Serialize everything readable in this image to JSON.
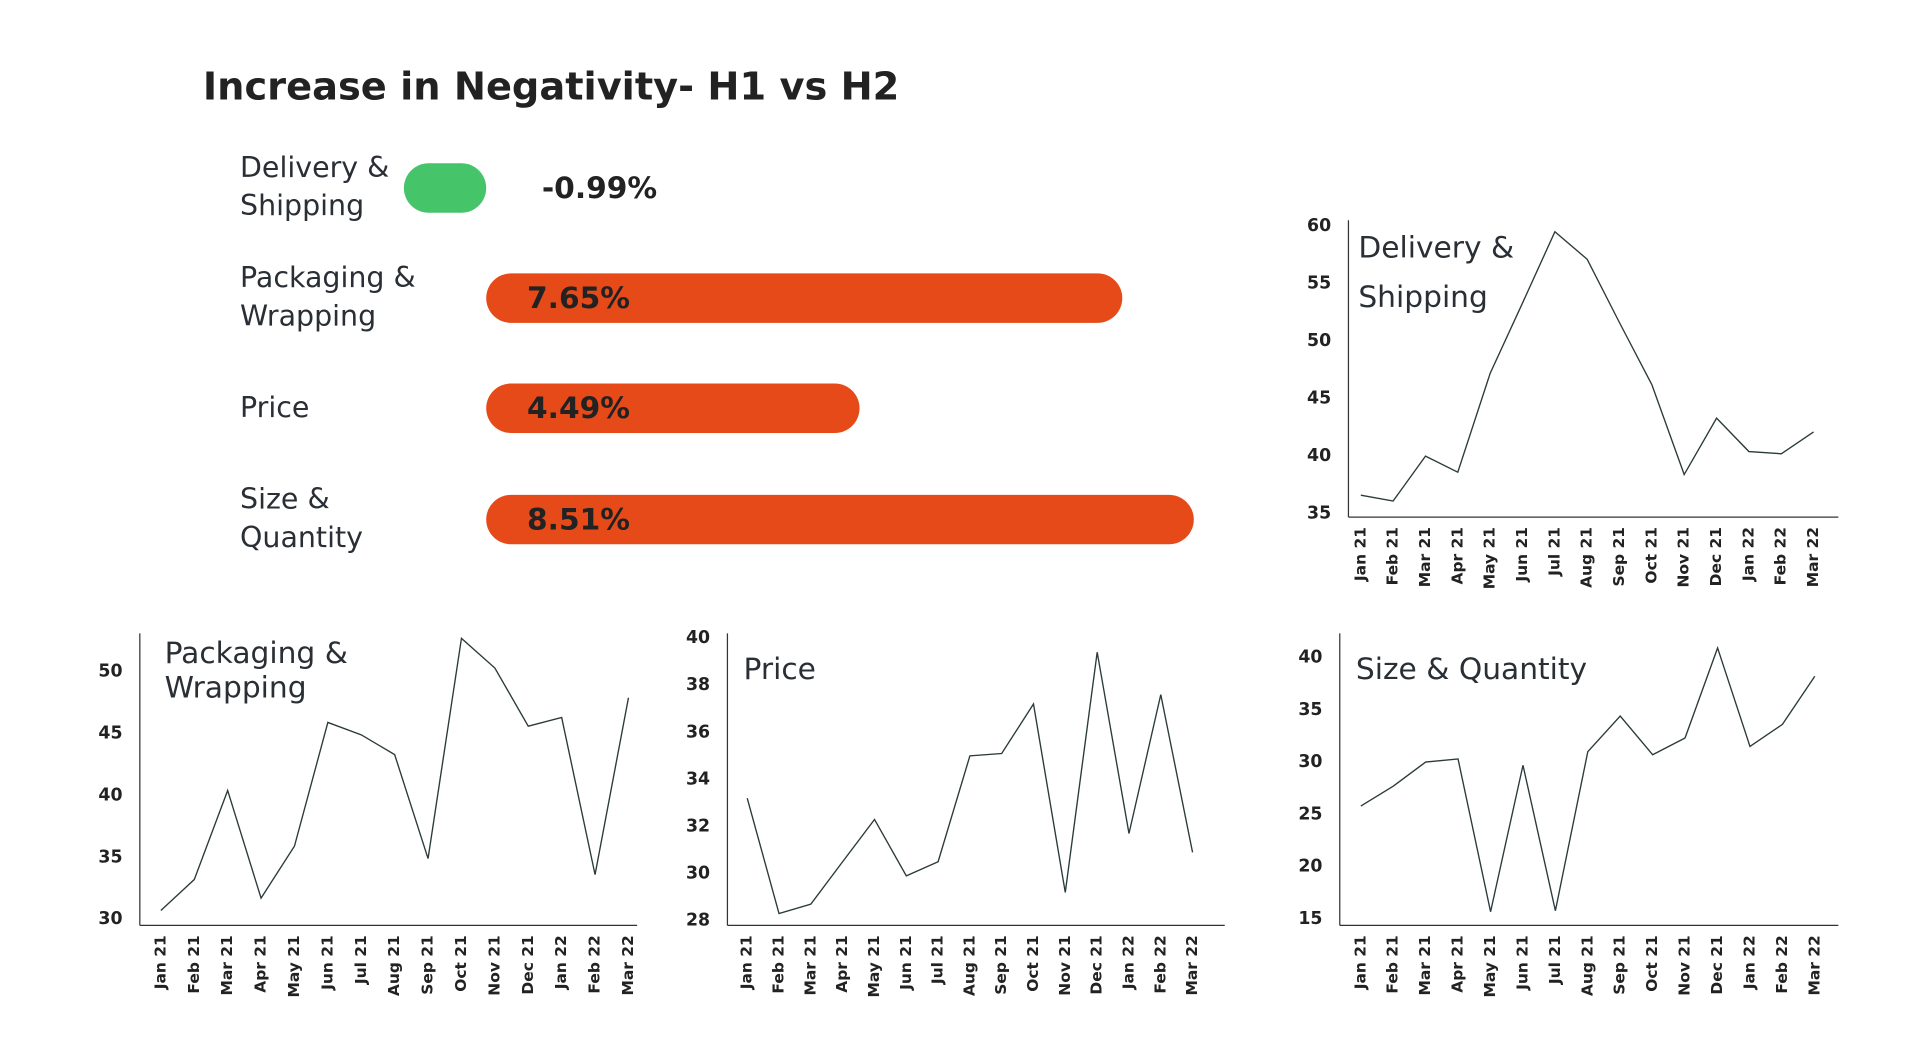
{
  "chart_data": [
    {
      "type": "hbar",
      "title": "Increase in Negativity- H1 vs H2",
      "categories": [
        "Delivery & Shipping",
        "Packaging & Wrapping",
        "Price",
        "Size & Quantity"
      ],
      "values": [
        -0.99,
        7.65,
        4.49,
        8.51
      ],
      "value_labels": [
        "-0.99%",
        "7.65%",
        "4.49%",
        "8.51%"
      ],
      "colors": [
        "#45c46a",
        "#e64a19",
        "#e64a19",
        "#e64a19"
      ]
    },
    {
      "type": "line",
      "title": "Delivery & Shipping",
      "categories": [
        "Jan 21",
        "Feb 21",
        "Mar 21",
        "Apr 21",
        "May 21",
        "Jun 21",
        "Jul 21",
        "Aug 21",
        "Sep 21",
        "Oct 21",
        "Nov 21",
        "Dec 21",
        "Jan 22",
        "Feb 22",
        "Mar 22"
      ],
      "values": [
        36.6,
        36.1,
        40.0,
        38.6,
        47.2,
        53.3,
        59.5,
        57.1,
        51.6,
        46.2,
        38.4,
        43.3,
        40.4,
        40.2,
        42.1
      ],
      "color": "#2b3a3a",
      "ylim": [
        34.7,
        60.5
      ],
      "yticks": [
        35,
        40,
        45,
        50,
        55,
        60
      ]
    },
    {
      "type": "line",
      "title": "Packaging & Wrapping",
      "categories": [
        "Jan 21",
        "Feb 21",
        "Mar 21",
        "Apr 21",
        "May 21",
        "Jun 21",
        "Jul 21",
        "Aug 21",
        "Sep 21",
        "Oct 21",
        "Nov 21",
        "Dec 21",
        "Jan 22",
        "Feb 22",
        "Mar 22"
      ],
      "values": [
        30.7,
        33.2,
        40.4,
        31.7,
        35.9,
        45.9,
        44.9,
        43.3,
        34.9,
        52.7,
        50.3,
        45.6,
        46.3,
        33.6,
        47.9
      ],
      "color": "#2b3a3a",
      "ylim": [
        29.5,
        53.1
      ],
      "yticks": [
        30,
        35,
        40,
        45,
        50
      ]
    },
    {
      "type": "line",
      "title": "Price",
      "categories": [
        "Jan 21",
        "Feb 21",
        "Mar 21",
        "Apr 21",
        "May 21",
        "Jun 21",
        "Jul 21",
        "Aug 21",
        "Sep 21",
        "Oct 21",
        "Nov 21",
        "Dec 21",
        "Jan 22",
        "Feb 22",
        "Mar 22"
      ],
      "values": [
        33.2,
        28.3,
        28.7,
        30.5,
        32.3,
        29.9,
        30.5,
        35.0,
        35.1,
        37.2,
        29.2,
        39.4,
        31.7,
        37.6,
        30.9
      ],
      "color": "#2b3a3a",
      "ylim": [
        27.8,
        40.2
      ],
      "yticks": [
        28,
        30,
        32,
        34,
        36,
        38,
        40
      ]
    },
    {
      "type": "line",
      "title": "Size & Quantity",
      "categories": [
        "Jan 21",
        "Feb 21",
        "Mar 21",
        "Apr 21",
        "May 21",
        "Jun 21",
        "Jul 21",
        "Aug 21",
        "Sep 21",
        "Oct 21",
        "Nov 21",
        "Dec 21",
        "Jan 22",
        "Feb 22",
        "Mar 22"
      ],
      "values": [
        25.8,
        27.7,
        30.0,
        30.3,
        15.7,
        29.7,
        15.8,
        31.0,
        34.4,
        30.7,
        32.3,
        40.9,
        31.5,
        33.6,
        38.2
      ],
      "color": "#2b3a3a",
      "ylim": [
        14.4,
        42.3
      ],
      "yticks": [
        15,
        20,
        25,
        30,
        35,
        40
      ]
    }
  ]
}
